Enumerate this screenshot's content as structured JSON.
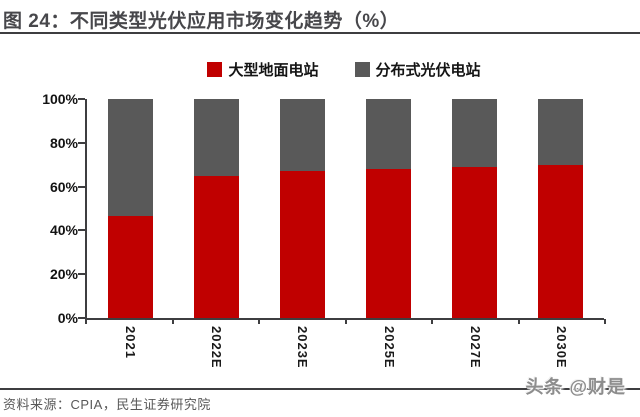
{
  "figure": {
    "title": "图 24：不同类型光伏应用市场变化趋势（%）",
    "source": "资料来源：CPIA，民生证券研究院",
    "watermark": "头条 @财是"
  },
  "colors": {
    "series_ground": "#c00000",
    "series_distributed": "#595959",
    "axis_line": "#3e3e40",
    "title_text": "#47474b",
    "source_text": "#585858",
    "watermark_text": "#8d8d8d",
    "background": "#ffffff"
  },
  "chart_data": {
    "type": "bar",
    "stacked": true,
    "title": "不同类型光伏应用市场变化趋势（%）",
    "categories": [
      "2021",
      "2022E",
      "2023E",
      "2025E",
      "2027E",
      "2030E"
    ],
    "series": [
      {
        "name": "大型地面电站",
        "color": "#c00000",
        "values": [
          46.6,
          65,
          67,
          68,
          69,
          70
        ]
      },
      {
        "name": "分布式光伏电站",
        "color": "#595959",
        "values": [
          53.4,
          35,
          33,
          32,
          31,
          30
        ]
      }
    ],
    "xlabel": "",
    "ylabel": "",
    "ylim": [
      0,
      100
    ],
    "ytick_step": 20,
    "yticks": [
      "0%",
      "20%",
      "40%",
      "60%",
      "80%",
      "100%"
    ],
    "grid": false,
    "legend_position": "top",
    "x_label_rotation_deg": 90
  }
}
